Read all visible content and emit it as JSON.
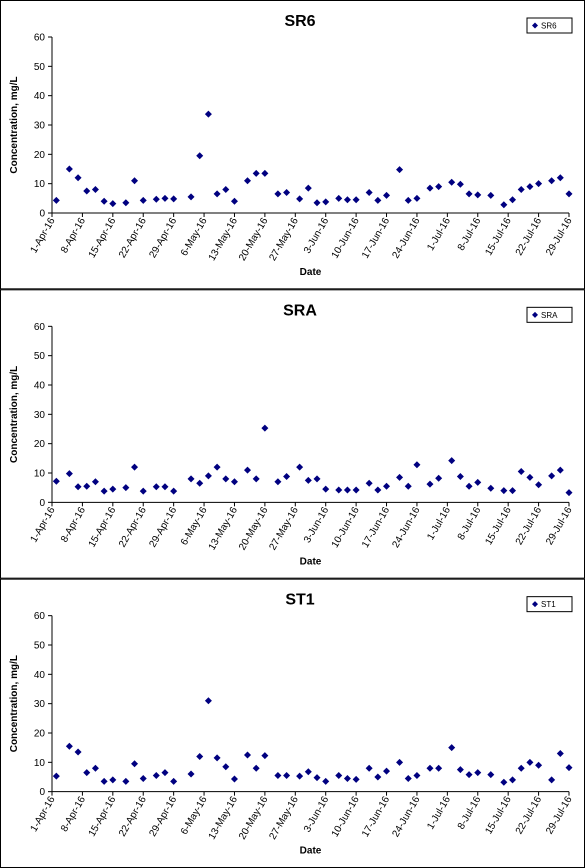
{
  "chart_data": [
    {
      "type": "scatter",
      "title": "SR6",
      "x_label": "Date",
      "y_label": "Concentration, mg/L",
      "series": [
        {
          "name": "SR6",
          "color": "#000080",
          "x": [
            "2-Apr-16",
            "5-Apr-16",
            "7-Apr-16",
            "9-Apr-16",
            "11-Apr-16",
            "13-Apr-16",
            "15-Apr-16",
            "18-Apr-16",
            "20-Apr-16",
            "22-Apr-16",
            "25-Apr-16",
            "27-Apr-16",
            "29-Apr-16",
            "3-May-16",
            "5-May-16",
            "7-May-16",
            "9-May-16",
            "11-May-16",
            "13-May-16",
            "16-May-16",
            "18-May-16",
            "20-May-16",
            "23-May-16",
            "25-May-16",
            "28-May-16",
            "30-May-16",
            "1-Jun-16",
            "3-Jun-16",
            "6-Jun-16",
            "8-Jun-16",
            "10-Jun-16",
            "13-Jun-16",
            "15-Jun-16",
            "17-Jun-16",
            "20-Jun-16",
            "22-Jun-16",
            "24-Jun-16",
            "27-Jun-16",
            "29-Jun-16",
            "2-Jul-16",
            "4-Jul-16",
            "6-Jul-16",
            "8-Jul-16",
            "11-Jul-16",
            "14-Jul-16",
            "16-Jul-16",
            "18-Jul-16",
            "20-Jul-16",
            "22-Jul-16",
            "25-Jul-16",
            "27-Jul-16",
            "29-Jul-16"
          ],
          "values": [
            4.3,
            15,
            12,
            7.5,
            8,
            4,
            3.2,
            3.5,
            11,
            4.3,
            4.7,
            5,
            4.8,
            5.5,
            19.5,
            33.7,
            6.5,
            8,
            4,
            11,
            13.5,
            13.5,
            6.5,
            7,
            4.8,
            8.5,
            3.5,
            3.8,
            5,
            4.5,
            4.5,
            7,
            4.3,
            6,
            14.8,
            4.3,
            5,
            8.5,
            9,
            10.5,
            9.8,
            6.5,
            6.2,
            6,
            2.8,
            4.5,
            8,
            9,
            10,
            11,
            12,
            6.5
          ]
        }
      ],
      "xlim": [
        "1-Apr-16",
        "29-Jul-16"
      ],
      "xticks": [
        "1-Apr-16",
        "8-Apr-16",
        "15-Apr-16",
        "22-Apr-16",
        "29-Apr-16",
        "6-May-16",
        "13-May-16",
        "20-May-16",
        "27-May-16",
        "3-Jun-16",
        "10-Jun-16",
        "17-Jun-16",
        "24-Jun-16",
        "1-Jul-16",
        "8-Jul-16",
        "15-Jul-16",
        "22-Jul-16",
        "29-Jul-16"
      ],
      "ylim": [
        0,
        60
      ],
      "yticks": [
        0,
        10,
        20,
        30,
        40,
        50,
        60
      ],
      "legend": "top-right"
    },
    {
      "type": "scatter",
      "title": "SRA",
      "x_label": "Date",
      "y_label": "Concentration, mg/L",
      "series": [
        {
          "name": "SRA",
          "color": "#000080",
          "x": [
            "2-Apr-16",
            "5-Apr-16",
            "7-Apr-16",
            "9-Apr-16",
            "11-Apr-16",
            "13-Apr-16",
            "15-Apr-16",
            "18-Apr-16",
            "20-Apr-16",
            "22-Apr-16",
            "25-Apr-16",
            "27-Apr-16",
            "29-Apr-16",
            "3-May-16",
            "5-May-16",
            "7-May-16",
            "9-May-16",
            "11-May-16",
            "13-May-16",
            "16-May-16",
            "18-May-16",
            "20-May-16",
            "23-May-16",
            "25-May-16",
            "28-May-16",
            "30-May-16",
            "1-Jun-16",
            "3-Jun-16",
            "6-Jun-16",
            "8-Jun-16",
            "10-Jun-16",
            "13-Jun-16",
            "15-Jun-16",
            "17-Jun-16",
            "20-Jun-16",
            "22-Jun-16",
            "24-Jun-16",
            "27-Jun-16",
            "29-Jun-16",
            "2-Jul-16",
            "4-Jul-16",
            "6-Jul-16",
            "8-Jul-16",
            "11-Jul-16",
            "14-Jul-16",
            "16-Jul-16",
            "18-Jul-16",
            "20-Jul-16",
            "22-Jul-16",
            "25-Jul-16",
            "27-Jul-16",
            "29-Jul-16"
          ],
          "values": [
            7.2,
            9.8,
            5.3,
            5.5,
            7,
            3.8,
            4.5,
            5,
            12,
            3.8,
            5.3,
            5.3,
            3.8,
            8,
            6.5,
            9,
            12,
            8,
            7,
            11,
            8,
            25.3,
            7,
            8.8,
            12,
            7.5,
            8,
            4.5,
            4.2,
            4.2,
            4.2,
            6.5,
            4.2,
            5.5,
            8.5,
            5.5,
            12.8,
            6.2,
            8.2,
            14.2,
            8.8,
            5.5,
            6.8,
            4.8,
            4,
            4,
            10.5,
            8.5,
            6,
            9,
            11,
            3.3
          ]
        }
      ],
      "xlim": [
        "1-Apr-16",
        "29-Jul-16"
      ],
      "xticks": [
        "1-Apr-16",
        "8-Apr-16",
        "15-Apr-16",
        "22-Apr-16",
        "29-Apr-16",
        "6-May-16",
        "13-May-16",
        "20-May-16",
        "27-May-16",
        "3-Jun-16",
        "10-Jun-16",
        "17-Jun-16",
        "24-Jun-16",
        "1-Jul-16",
        "8-Jul-16",
        "15-Jul-16",
        "22-Jul-16",
        "29-Jul-16"
      ],
      "ylim": [
        0,
        60
      ],
      "yticks": [
        0,
        10,
        20,
        30,
        40,
        50,
        60
      ],
      "legend": "top-right"
    },
    {
      "type": "scatter",
      "title": "ST1",
      "x_label": "Date",
      "y_label": "Concentration, mg/L",
      "series": [
        {
          "name": "ST1",
          "color": "#000080",
          "x": [
            "2-Apr-16",
            "5-Apr-16",
            "7-Apr-16",
            "9-Apr-16",
            "11-Apr-16",
            "13-Apr-16",
            "15-Apr-16",
            "18-Apr-16",
            "20-Apr-16",
            "22-Apr-16",
            "25-Apr-16",
            "27-Apr-16",
            "29-Apr-16",
            "3-May-16",
            "5-May-16",
            "7-May-16",
            "9-May-16",
            "11-May-16",
            "13-May-16",
            "16-May-16",
            "18-May-16",
            "20-May-16",
            "23-May-16",
            "25-May-16",
            "28-May-16",
            "30-May-16",
            "1-Jun-16",
            "3-Jun-16",
            "6-Jun-16",
            "8-Jun-16",
            "10-Jun-16",
            "13-Jun-16",
            "15-Jun-16",
            "17-Jun-16",
            "20-Jun-16",
            "22-Jun-16",
            "24-Jun-16",
            "27-Jun-16",
            "29-Jun-16",
            "2-Jul-16",
            "4-Jul-16",
            "6-Jul-16",
            "8-Jul-16",
            "11-Jul-16",
            "14-Jul-16",
            "16-Jul-16",
            "18-Jul-16",
            "20-Jul-16",
            "22-Jul-16",
            "25-Jul-16",
            "27-Jul-16",
            "29-Jul-16"
          ],
          "values": [
            5.3,
            15.5,
            13.5,
            6.5,
            8,
            3.5,
            4,
            3.5,
            9.5,
            4.5,
            5.5,
            6.5,
            3.5,
            6,
            12,
            31,
            11.5,
            8.5,
            4.3,
            12.5,
            8,
            12.3,
            5.5,
            5.5,
            5.3,
            6.8,
            4.8,
            3.5,
            5.5,
            4.5,
            4.2,
            8,
            5,
            7,
            10,
            4.5,
            5.5,
            8,
            8,
            15,
            7.5,
            5.8,
            6.5,
            5.8,
            3.2,
            4,
            8,
            10,
            9,
            4,
            13,
            8.2
          ]
        }
      ],
      "xlim": [
        "1-Apr-16",
        "29-Jul-16"
      ],
      "xticks": [
        "1-Apr-16",
        "8-Apr-16",
        "15-Apr-16",
        "22-Apr-16",
        "29-Apr-16",
        "6-May-16",
        "13-May-16",
        "20-May-16",
        "27-May-16",
        "3-Jun-16",
        "10-Jun-16",
        "17-Jun-16",
        "24-Jun-16",
        "1-Jul-16",
        "8-Jul-16",
        "15-Jul-16",
        "22-Jul-16",
        "29-Jul-16"
      ],
      "ylim": [
        0,
        60
      ],
      "yticks": [
        0,
        10,
        20,
        30,
        40,
        50,
        60
      ],
      "legend": "top-right"
    }
  ]
}
